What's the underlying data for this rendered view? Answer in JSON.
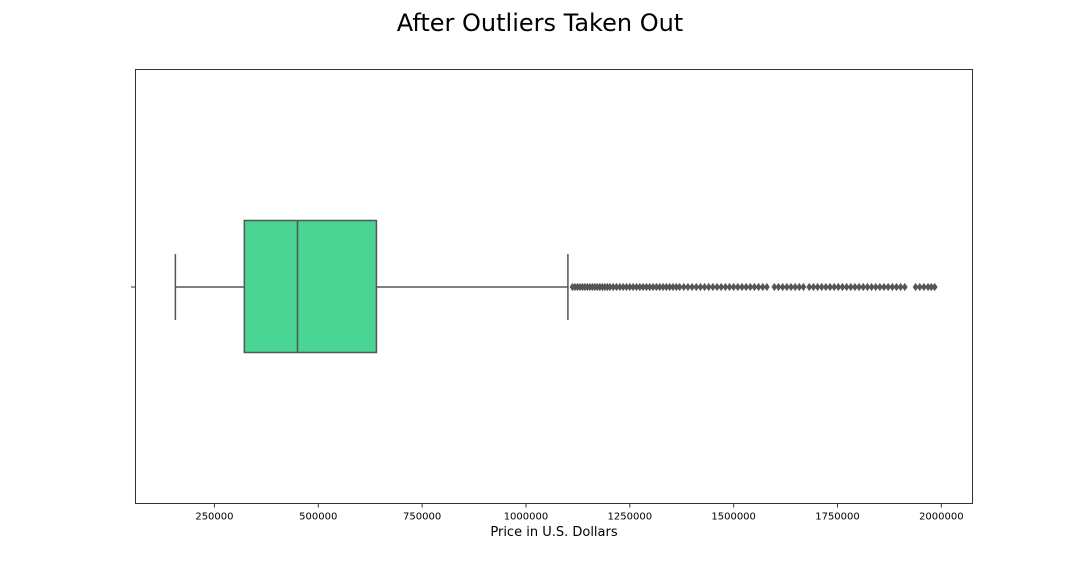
{
  "chart_data": {
    "type": "box",
    "orientation": "horizontal",
    "title": "After Outliers Taken Out",
    "xlabel": "Price in U.S. Dollars",
    "ylabel": "",
    "xlim": [
      60000,
      2075000
    ],
    "xticks": [
      250000,
      500000,
      750000,
      1000000,
      1250000,
      1500000,
      1750000,
      2000000
    ],
    "xtick_labels": [
      "250000",
      "500000",
      "750000",
      "1000000",
      "1250000",
      "1500000",
      "1750000",
      "2000000"
    ],
    "grid": false,
    "box": {
      "whisker_low": 156000,
      "q1": 322000,
      "median": 450000,
      "q3": 640000,
      "whisker_high": 1101000,
      "fill_color": "#4ad594",
      "line_color": "#555555"
    },
    "outliers": [
      1112000,
      1118000,
      1124000,
      1130000,
      1136000,
      1142000,
      1148000,
      1154000,
      1160000,
      1166000,
      1172000,
      1178000,
      1184000,
      1190000,
      1196000,
      1202000,
      1210000,
      1218000,
      1226000,
      1234000,
      1242000,
      1250000,
      1258000,
      1266000,
      1274000,
      1282000,
      1290000,
      1298000,
      1306000,
      1314000,
      1322000,
      1330000,
      1338000,
      1346000,
      1354000,
      1362000,
      1370000,
      1380000,
      1390000,
      1400000,
      1410000,
      1420000,
      1430000,
      1440000,
      1450000,
      1460000,
      1470000,
      1480000,
      1490000,
      1500000,
      1510000,
      1520000,
      1530000,
      1540000,
      1550000,
      1560000,
      1570000,
      1580000,
      1598000,
      1608000,
      1618000,
      1628000,
      1638000,
      1648000,
      1658000,
      1668000,
      1682000,
      1692000,
      1702000,
      1712000,
      1722000,
      1732000,
      1742000,
      1752000,
      1762000,
      1772000,
      1782000,
      1792000,
      1802000,
      1812000,
      1822000,
      1832000,
      1842000,
      1852000,
      1862000,
      1872000,
      1882000,
      1892000,
      1902000,
      1912000,
      1938000,
      1948000,
      1958000,
      1968000,
      1976000,
      1984000
    ]
  }
}
